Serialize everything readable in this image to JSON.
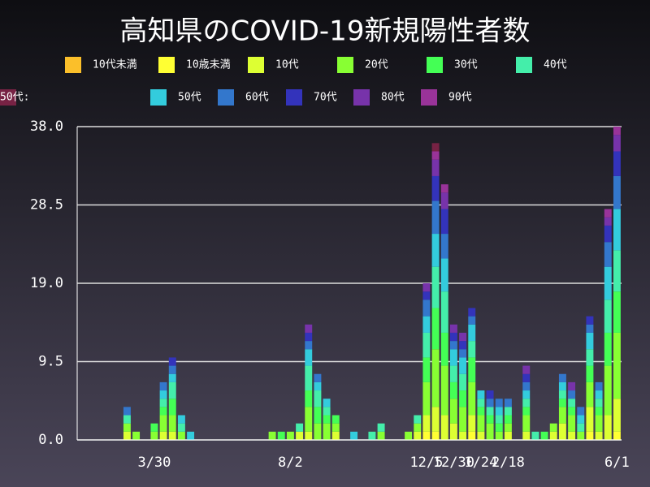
{
  "chart_data": {
    "type": "bar",
    "stacked": true,
    "title": "高知県のCOVID-19新規陽性者数",
    "categories": [
      null,
      null,
      null,
      null,
      null,
      null,
      null,
      null,
      "3/30",
      null,
      null,
      null,
      null,
      null,
      null,
      null,
      null,
      null,
      null,
      null,
      null,
      null,
      null,
      "8/2",
      null,
      null,
      null,
      null,
      null,
      null,
      null,
      null,
      null,
      null,
      null,
      null,
      null,
      null,
      "12/5",
      null,
      null,
      "12/30",
      null,
      null,
      "1/24",
      null,
      null,
      "2/18",
      null,
      null,
      null,
      null,
      null,
      null,
      null,
      null,
      null,
      null,
      null,
      "6/1"
    ],
    "series": [
      {
        "name": "10代未満",
        "color": "#fbbf2a",
        "values": [
          0,
          0,
          0,
          0,
          0,
          0,
          0,
          0,
          0,
          0,
          0,
          0,
          0,
          0,
          0,
          0,
          0,
          0,
          0,
          0,
          0,
          0,
          0,
          0,
          0,
          0,
          0,
          0,
          0,
          0,
          0,
          0,
          0,
          0,
          0,
          0,
          0,
          0,
          0,
          0,
          0,
          0,
          0,
          0,
          0,
          0,
          0,
          0,
          0,
          0,
          0,
          0,
          0,
          0,
          0,
          0,
          0,
          0,
          0,
          0
        ]
      },
      {
        "name": "10歳未満",
        "color": "#ffff33",
        "values": [
          0,
          0,
          0,
          0,
          0,
          0,
          0,
          0,
          0,
          0,
          0,
          0,
          0,
          0,
          0,
          0,
          0,
          0,
          0,
          0,
          0,
          0,
          0,
          0,
          0,
          0,
          0,
          0,
          0,
          0,
          0,
          0,
          0,
          0,
          0,
          0,
          0,
          0,
          1,
          1,
          0,
          0,
          0,
          1,
          0,
          0,
          0,
          0,
          0,
          0,
          0,
          0,
          0,
          0,
          0,
          0,
          1,
          0,
          0,
          1
        ]
      },
      {
        "name": "10代",
        "color": "#ddff33",
        "values": [
          0,
          0,
          0,
          0,
          0,
          1,
          0,
          0,
          0,
          1,
          1,
          0,
          0,
          0,
          0,
          0,
          0,
          0,
          0,
          0,
          0,
          0,
          0,
          0,
          1,
          1,
          0,
          0,
          1,
          0,
          0,
          0,
          0,
          0,
          0,
          0,
          0,
          1,
          2,
          3,
          3,
          2,
          1,
          2,
          1,
          0,
          0,
          1,
          0,
          1,
          0,
          0,
          1,
          2,
          1,
          0,
          3,
          1,
          3,
          4
        ]
      },
      {
        "name": "20代",
        "color": "#88ff33",
        "values": [
          0,
          0,
          0,
          0,
          0,
          1,
          1,
          0,
          1,
          2,
          2,
          1,
          0,
          0,
          0,
          0,
          0,
          0,
          0,
          0,
          0,
          1,
          0,
          1,
          0,
          3,
          2,
          2,
          1,
          0,
          0,
          0,
          0,
          1,
          0,
          0,
          1,
          1,
          4,
          7,
          6,
          3,
          3,
          4,
          2,
          2,
          1,
          1,
          0,
          2,
          0,
          0,
          1,
          2,
          2,
          1,
          3,
          2,
          6,
          8
        ]
      },
      {
        "name": "30代",
        "color": "#44ff55",
        "values": [
          0,
          0,
          0,
          0,
          0,
          0,
          0,
          0,
          1,
          1,
          2,
          0,
          0,
          0,
          0,
          0,
          0,
          0,
          0,
          0,
          0,
          0,
          1,
          0,
          0,
          2,
          2,
          1,
          1,
          0,
          0,
          0,
          0,
          0,
          0,
          0,
          0,
          0,
          3,
          5,
          4,
          2,
          2,
          3,
          1,
          1,
          1,
          1,
          0,
          1,
          0,
          1,
          0,
          1,
          1,
          0,
          2,
          1,
          4,
          5
        ]
      },
      {
        "name": "40代",
        "color": "#44eeaa",
        "values": [
          0,
          0,
          0,
          0,
          0,
          1,
          0,
          0,
          0,
          1,
          2,
          1,
          0,
          0,
          0,
          0,
          0,
          0,
          0,
          0,
          0,
          0,
          0,
          0,
          1,
          3,
          2,
          1,
          0,
          0,
          0,
          0,
          1,
          1,
          0,
          0,
          0,
          1,
          3,
          5,
          5,
          2,
          2,
          2,
          1,
          1,
          1,
          1,
          0,
          1,
          1,
          0,
          0,
          1,
          1,
          1,
          2,
          1,
          4,
          5
        ]
      },
      {
        "name": "50代",
        "color": "#33ccdd",
        "values": [
          0,
          0,
          0,
          0,
          0,
          0,
          0,
          0,
          0,
          1,
          1,
          1,
          1,
          0,
          0,
          0,
          0,
          0,
          0,
          0,
          0,
          0,
          0,
          0,
          0,
          2,
          1,
          1,
          0,
          0,
          1,
          0,
          0,
          0,
          0,
          0,
          0,
          0,
          2,
          4,
          4,
          2,
          2,
          2,
          1,
          0,
          1,
          0,
          0,
          1,
          0,
          0,
          0,
          1,
          0,
          1,
          2,
          1,
          4,
          5
        ]
      },
      {
        "name": "60代",
        "color": "#3377cc",
        "values": [
          0,
          0,
          0,
          0,
          0,
          1,
          0,
          0,
          0,
          1,
          1,
          0,
          0,
          0,
          0,
          0,
          0,
          0,
          0,
          0,
          0,
          0,
          0,
          0,
          0,
          1,
          1,
          0,
          0,
          0,
          0,
          0,
          0,
          0,
          0,
          0,
          0,
          0,
          2,
          4,
          3,
          1,
          1,
          1,
          0,
          1,
          1,
          1,
          0,
          1,
          0,
          0,
          0,
          1,
          1,
          1,
          1,
          1,
          3,
          4
        ]
      },
      {
        "name": "70代",
        "color": "#3333bb",
        "values": [
          0,
          0,
          0,
          0,
          0,
          0,
          0,
          0,
          0,
          0,
          1,
          0,
          0,
          0,
          0,
          0,
          0,
          0,
          0,
          0,
          0,
          0,
          0,
          0,
          0,
          1,
          0,
          0,
          0,
          0,
          0,
          0,
          0,
          0,
          0,
          0,
          0,
          0,
          1,
          3,
          3,
          1,
          1,
          1,
          0,
          1,
          0,
          0,
          0,
          1,
          0,
          0,
          0,
          0,
          0,
          0,
          1,
          0,
          2,
          3
        ]
      },
      {
        "name": "80代",
        "color": "#7733aa",
        "values": [
          0,
          0,
          0,
          0,
          0,
          0,
          0,
          0,
          0,
          0,
          0,
          0,
          0,
          0,
          0,
          0,
          0,
          0,
          0,
          0,
          0,
          0,
          0,
          0,
          0,
          1,
          0,
          0,
          0,
          0,
          0,
          0,
          0,
          0,
          0,
          0,
          0,
          0,
          1,
          2,
          2,
          1,
          1,
          0,
          0,
          0,
          0,
          0,
          0,
          1,
          0,
          0,
          0,
          0,
          1,
          0,
          0,
          0,
          1,
          2
        ]
      },
      {
        "name": "90代",
        "color": "#993399",
        "values": [
          0,
          0,
          0,
          0,
          0,
          0,
          0,
          0,
          0,
          0,
          0,
          0,
          0,
          0,
          0,
          0,
          0,
          0,
          0,
          0,
          0,
          0,
          0,
          0,
          0,
          0,
          0,
          0,
          0,
          0,
          0,
          0,
          0,
          0,
          0,
          0,
          0,
          0,
          0,
          1,
          1,
          0,
          0,
          0,
          0,
          0,
          0,
          0,
          0,
          0,
          0,
          0,
          0,
          0,
          0,
          0,
          0,
          0,
          1,
          1
        ]
      },
      {
        "name": "50代:",
        "color": "#772244",
        "values": [
          0,
          0,
          0,
          0,
          0,
          0,
          0,
          0,
          0,
          0,
          0,
          0,
          0,
          0,
          0,
          0,
          0,
          0,
          0,
          0,
          0,
          0,
          0,
          0,
          0,
          0,
          0,
          0,
          0,
          0,
          0,
          0,
          0,
          0,
          0,
          0,
          0,
          0,
          0,
          1,
          0,
          0,
          0,
          0,
          0,
          0,
          0,
          0,
          0,
          0,
          0,
          0,
          0,
          0,
          0,
          0,
          0,
          0,
          0,
          0
        ]
      }
    ],
    "ylim": [
      0,
      38
    ],
    "yticks": [
      {
        "value": 0,
        "label": "0.0"
      },
      9.5,
      {
        "value": 19,
        "label": "19.0"
      },
      28.5,
      {
        "value": 38,
        "label": "38.0"
      }
    ],
    "grid": true
  }
}
